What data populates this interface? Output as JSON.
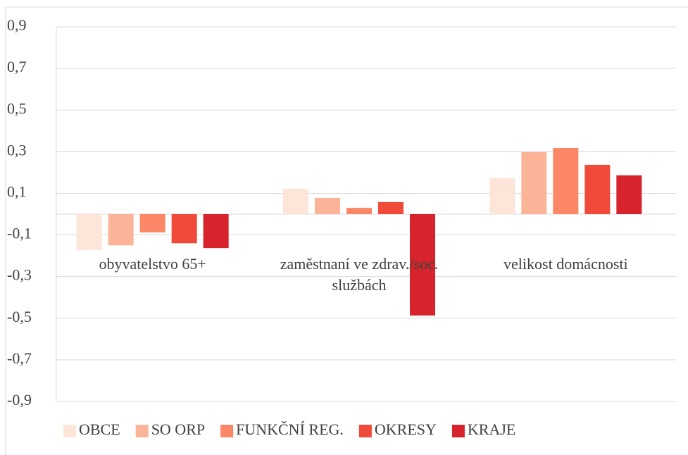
{
  "chart_data": {
    "type": "bar",
    "categories": [
      "obyvatelstvo 65+",
      "zaměstnaní ve zdrav./soc. službách",
      "velikost domácnosti"
    ],
    "series": [
      {
        "name": "OBCE",
        "color": "#fde5da",
        "values": [
          -0.173,
          0.122,
          0.173
        ]
      },
      {
        "name": "SO ORP",
        "color": "#fcb499",
        "values": [
          -0.15,
          0.078,
          0.298
        ]
      },
      {
        "name": "FUNKČNÍ REG.",
        "color": "#fb8766",
        "values": [
          -0.088,
          0.03,
          0.318
        ]
      },
      {
        "name": "OKRESY",
        "color": "#ef4a3a",
        "values": [
          -0.14,
          0.058,
          0.237
        ]
      },
      {
        "name": "KRAJE",
        "color": "#d7232b",
        "values": [
          -0.163,
          -0.487,
          0.186
        ]
      }
    ],
    "ylim": [
      -0.9,
      0.9
    ],
    "yticks": [
      {
        "value": 0.9,
        "label": "0,9"
      },
      {
        "value": 0.7,
        "label": "0,7"
      },
      {
        "value": 0.5,
        "label": "0,5"
      },
      {
        "value": 0.3,
        "label": "0,3"
      },
      {
        "value": 0.1,
        "label": "0,1"
      },
      {
        "value": -0.1,
        "label": "-0,1"
      },
      {
        "value": -0.3,
        "label": "-0,3"
      },
      {
        "value": -0.5,
        "label": "-0,5"
      },
      {
        "value": -0.7,
        "label": "-0,7"
      },
      {
        "value": -0.9,
        "label": "-0,9"
      }
    ],
    "grid": true,
    "legend": "bottom"
  }
}
